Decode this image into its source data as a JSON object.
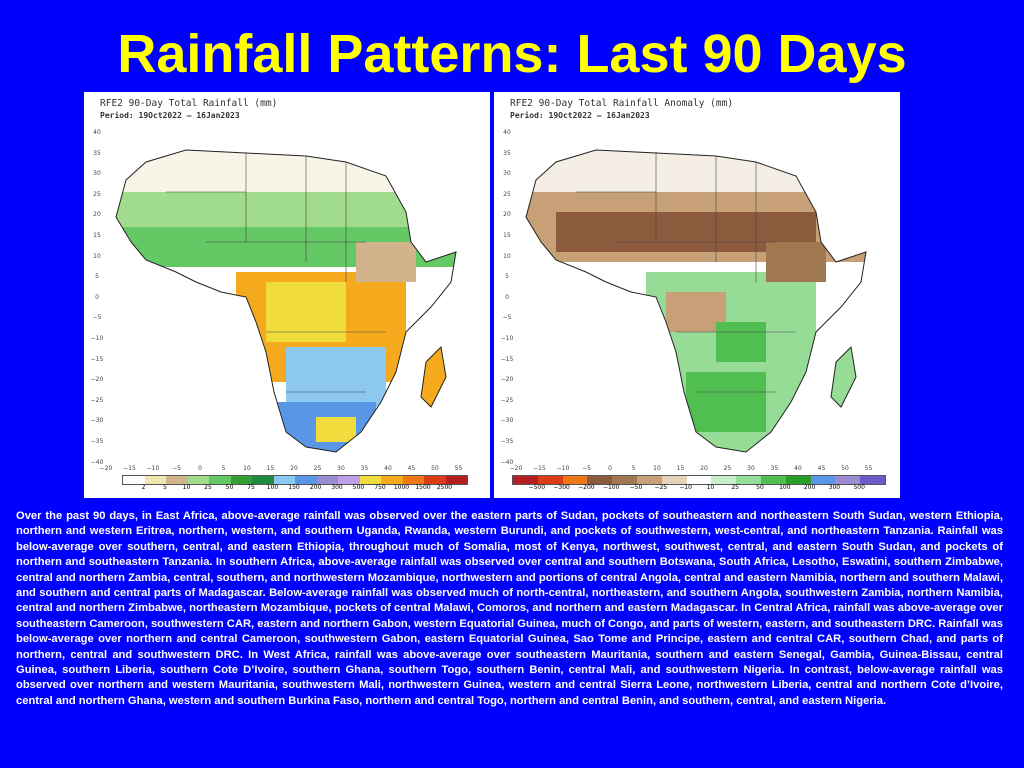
{
  "slide": {
    "title": "Rainfall Patterns: Last 90 Days",
    "paragraph": "Over the past 90 days, in East Africa, above-average rainfall was observed over the eastern parts of Sudan, pockets of southeastern and northeastern South Sudan, western Ethiopia, northern and western Eritrea, northern, western, and southern Uganda, Rwanda, western Burundi, and pockets of southwestern, west-central, and northeastern Tanzania. Rainfall was below-average over southern, central, and eastern Ethiopia, throughout much of Somalia, most of Kenya, northwest, southwest, central, and eastern South Sudan, and pockets of northern and southeastern Tanzania. In southern Africa, above-average rainfall was observed over central and southern Botswana, South Africa, Lesotho, Eswatini, southern Zimbabwe, central and northern Zambia, central, southern, and northwestern Mozambique, northwestern and portions of central Angola, central and eastern Namibia, northern and southern Malawi, and southern and central parts of Madagascar. Below-average rainfall was observed much of north-central, northeastern, and southern Angola, southwestern Zambia, northern Namibia, central and northern Zimbabwe, northeastern Mozambique, pockets of central Malawi, Comoros, and northern and eastern Madagascar. In Central Africa, rainfall was above-average over southeastern Cameroon, southwestern CAR, eastern and northern Gabon, western Equatorial Guinea, much of Congo, and parts of western, eastern, and southeastern  DRC. Rainfall was below-average over northern and central Cameroon, southwestern Gabon, eastern Equatorial Guinea, Sao Tome and Principe, eastern and central CAR, southern Chad, and parts of northern, central and southwestern DRC. In West Africa, rainfall was above-average over southeastern Mauritania, southern and eastern Senegal, Gambia, Guinea-Bissau, central Guinea, southern Liberia, southern Cote D’Ivoire, southern Ghana, southern Togo, southern Benin, central Mali, and southwestern Nigeria. In contrast, below-average rainfall was observed over northern and western Mauritania, southwestern Mali, northwestern Guinea, western and central Sierra Leone, northwestern Liberia, central and northern Cote d’Ivoire, central and northern Ghana, western and southern Burkina Faso, northern and central Togo, northern and central Benin, and southern, central, and eastern Nigeria."
  },
  "maps": {
    "y_ticks": [
      "40",
      "35",
      "30",
      "25",
      "20",
      "15",
      "10",
      "5",
      "0",
      "−5",
      "−10",
      "−15",
      "−20",
      "−25",
      "−30",
      "−35",
      "−40"
    ],
    "x_ticks": [
      "−20",
      "−15",
      "−10",
      "−5",
      "0",
      "5",
      "10",
      "15",
      "20",
      "25",
      "30",
      "35",
      "40",
      "45",
      "50",
      "55"
    ],
    "total": {
      "title": "RFE2 90-Day Total Rainfall (mm)",
      "period": "Period: 19Oct2022 – 16Jan2023",
      "legend_labels": [
        "2",
        "5",
        "10",
        "25",
        "50",
        "75",
        "100",
        "150",
        "200",
        "300",
        "500",
        "750",
        "1000",
        "1500",
        "2500"
      ],
      "legend_colors": [
        "#FFFFFF",
        "#F0E6B4",
        "#D2B48C",
        "#A0DC8C",
        "#64C864",
        "#32A032",
        "#1E8C3C",
        "#8CC8F0",
        "#5A96E6",
        "#9B8CD2",
        "#BEA0E6",
        "#F0DC3C",
        "#F5AA1E",
        "#F07814",
        "#DC3C14",
        "#B41E1E"
      ]
    },
    "anomaly": {
      "title": "RFE2 90-Day Total Rainfall Anomaly (mm)",
      "period": "Period: 19Oct2022 – 16Jan2023",
      "legend_labels": [
        "−500",
        "−300",
        "−200",
        "−100",
        "−50",
        "−25",
        "−10",
        "10",
        "25",
        "50",
        "100",
        "200",
        "300",
        "500"
      ],
      "legend_colors": [
        "#B41E1E",
        "#DC3C14",
        "#F07814",
        "#8C5A3C",
        "#A07850",
        "#C8A078",
        "#E6D2B4",
        "#FFFFFF",
        "#C8F0C8",
        "#96DC96",
        "#50BE50",
        "#28A028",
        "#5A96E6",
        "#9B8CD2",
        "#6E5AC8"
      ]
    }
  }
}
